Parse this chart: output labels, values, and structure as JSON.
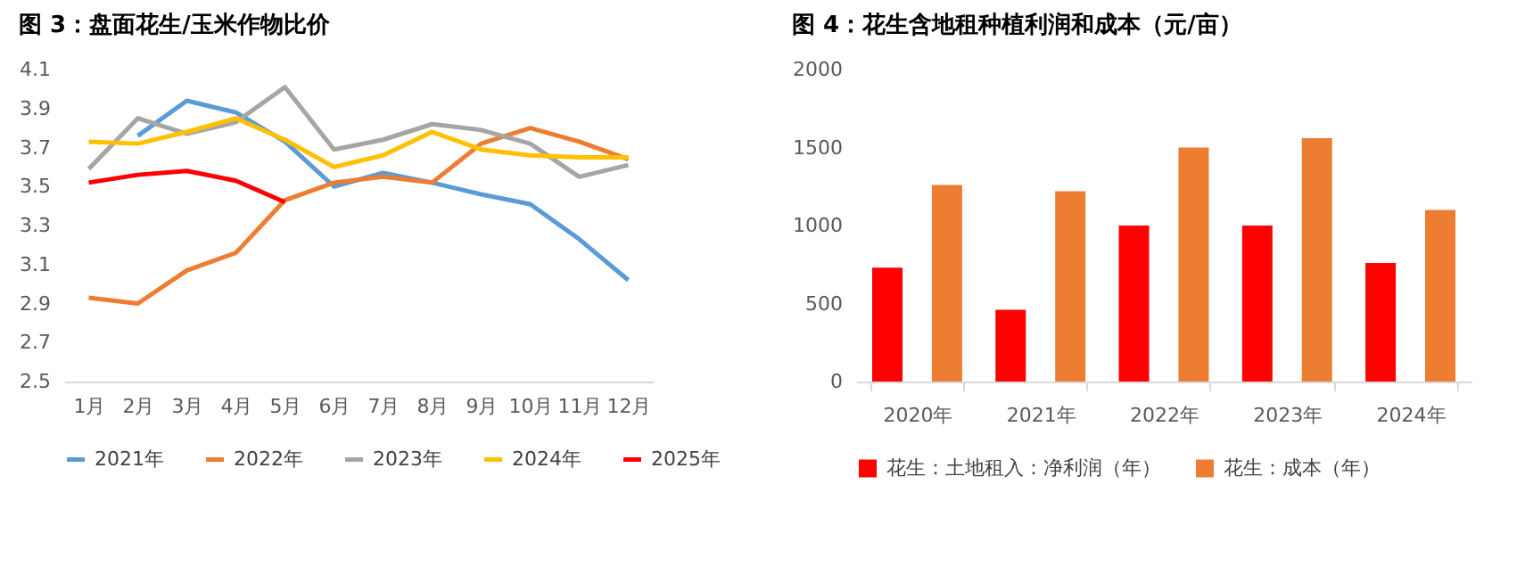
{
  "chart_data": [
    {
      "type": "line",
      "title": "图 3：盘面花生/玉米作物比价",
      "categories": [
        "1月",
        "2月",
        "3月",
        "4月",
        "5月",
        "6月",
        "7月",
        "8月",
        "9月",
        "10月",
        "11月",
        "12月"
      ],
      "series": [
        {
          "name": "2021年",
          "color": "#5b9bd5",
          "values": [
            null,
            3.76,
            3.94,
            3.88,
            3.73,
            3.5,
            3.57,
            3.52,
            3.46,
            3.41,
            3.23,
            3.02
          ]
        },
        {
          "name": "2022年",
          "color": "#ed7d31",
          "values": [
            2.93,
            2.9,
            3.07,
            3.16,
            3.43,
            3.52,
            3.55,
            3.52,
            3.72,
            3.8,
            3.73,
            3.64
          ]
        },
        {
          "name": "2023年",
          "color": "#a5a5a5",
          "values": [
            3.59,
            3.85,
            3.77,
            3.83,
            4.01,
            3.69,
            3.74,
            3.82,
            3.79,
            3.72,
            3.55,
            3.61
          ]
        },
        {
          "name": "2024年",
          "color": "#ffc000",
          "values": [
            3.73,
            3.72,
            3.78,
            3.85,
            3.74,
            3.6,
            3.66,
            3.78,
            3.69,
            3.66,
            3.65,
            3.65
          ]
        },
        {
          "name": "2025年",
          "color": "#ff0000",
          "values": [
            3.52,
            3.56,
            3.58,
            3.53,
            3.42,
            null,
            null,
            null,
            null,
            null,
            null,
            null
          ]
        }
      ],
      "ylim": [
        2.5,
        4.1
      ],
      "yticks": [
        2.5,
        2.7,
        2.9,
        3.1,
        3.3,
        3.5,
        3.7,
        3.9,
        4.1
      ],
      "grid": false,
      "legend": "bottom",
      "marker": "none",
      "line_style": "solid"
    },
    {
      "type": "bar",
      "title": "图 4：花生含地租种植利润和成本（元/亩）",
      "categories": [
        "2020年",
        "2021年",
        "2022年",
        "2023年",
        "2024年"
      ],
      "series": [
        {
          "name": "花生：土地租入：净利润（年）",
          "color": "#ff0000",
          "values": [
            730,
            460,
            1000,
            1000,
            760
          ]
        },
        {
          "name": "花生：成本（年）",
          "color": "#ed7d31",
          "values": [
            1260,
            1220,
            1500,
            1560,
            1100
          ]
        }
      ],
      "ylim": [
        0,
        2000
      ],
      "yticks": [
        0,
        500,
        1000,
        1500,
        2000
      ],
      "grid": false,
      "legend": "bottom"
    }
  ]
}
